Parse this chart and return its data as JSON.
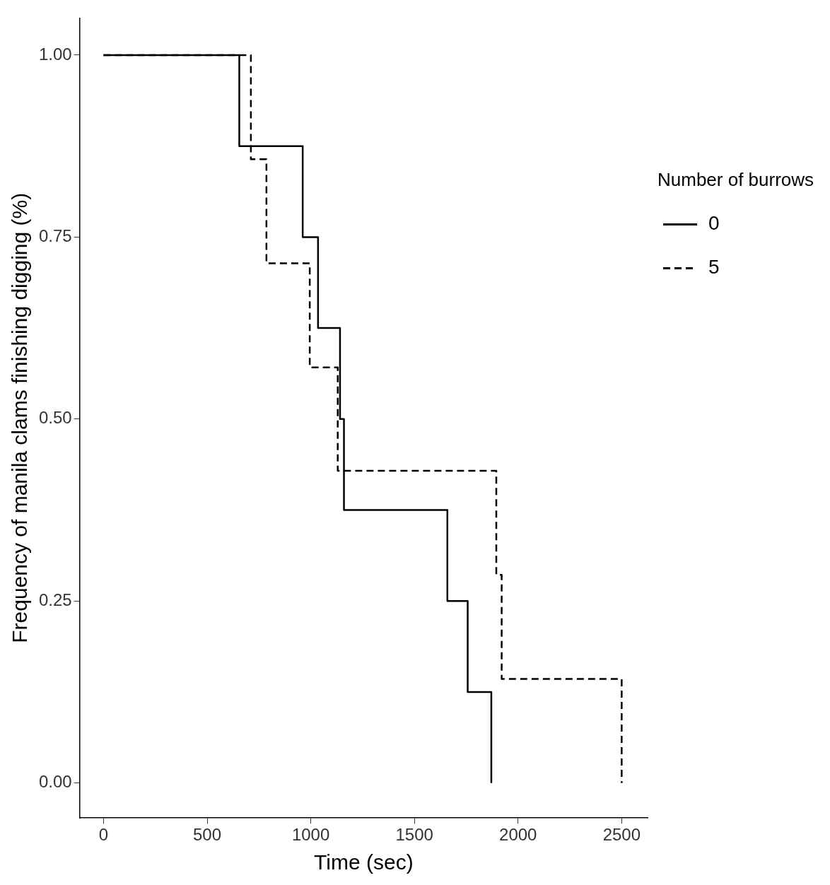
{
  "chart_data": {
    "type": "step",
    "xlabel": "Time (sec)",
    "ylabel": "Frequency of manila clams finishing digging (%)",
    "legend_title": "Number of burrows",
    "legend": "right",
    "grid": false,
    "marker": "none",
    "xlim": [
      -115,
      2625
    ],
    "xticks": [
      0,
      500,
      1000,
      1500,
      2000,
      2500
    ],
    "ylim": [
      -0.048,
      1.051
    ],
    "yticks": [
      {
        "value": 0,
        "label": "0.00"
      },
      {
        "value": 0.25,
        "label": "0.25"
      },
      {
        "value": 0.5,
        "label": "0.50"
      },
      {
        "value": 0.75,
        "label": "0.75"
      },
      {
        "value": 1,
        "label": "1.00"
      }
    ],
    "series": [
      {
        "name": "0",
        "color": "#000000",
        "line_style": "solid",
        "x": [
          0,
          655,
          961,
          1035,
          1141,
          1160,
          1659,
          1757,
          1871
        ],
        "values": [
          1,
          0.875,
          0.75,
          0.625,
          0.5,
          0.375,
          0.25,
          0.125,
          0
        ]
      },
      {
        "name": "5",
        "color": "#000000",
        "line_style": "dashed",
        "x": [
          0,
          711,
          786,
          995,
          1130,
          1895,
          1921,
          2500
        ],
        "values": [
          1,
          0.857,
          0.714,
          0.571,
          0.429,
          0.286,
          0.143,
          0
        ]
      }
    ]
  }
}
